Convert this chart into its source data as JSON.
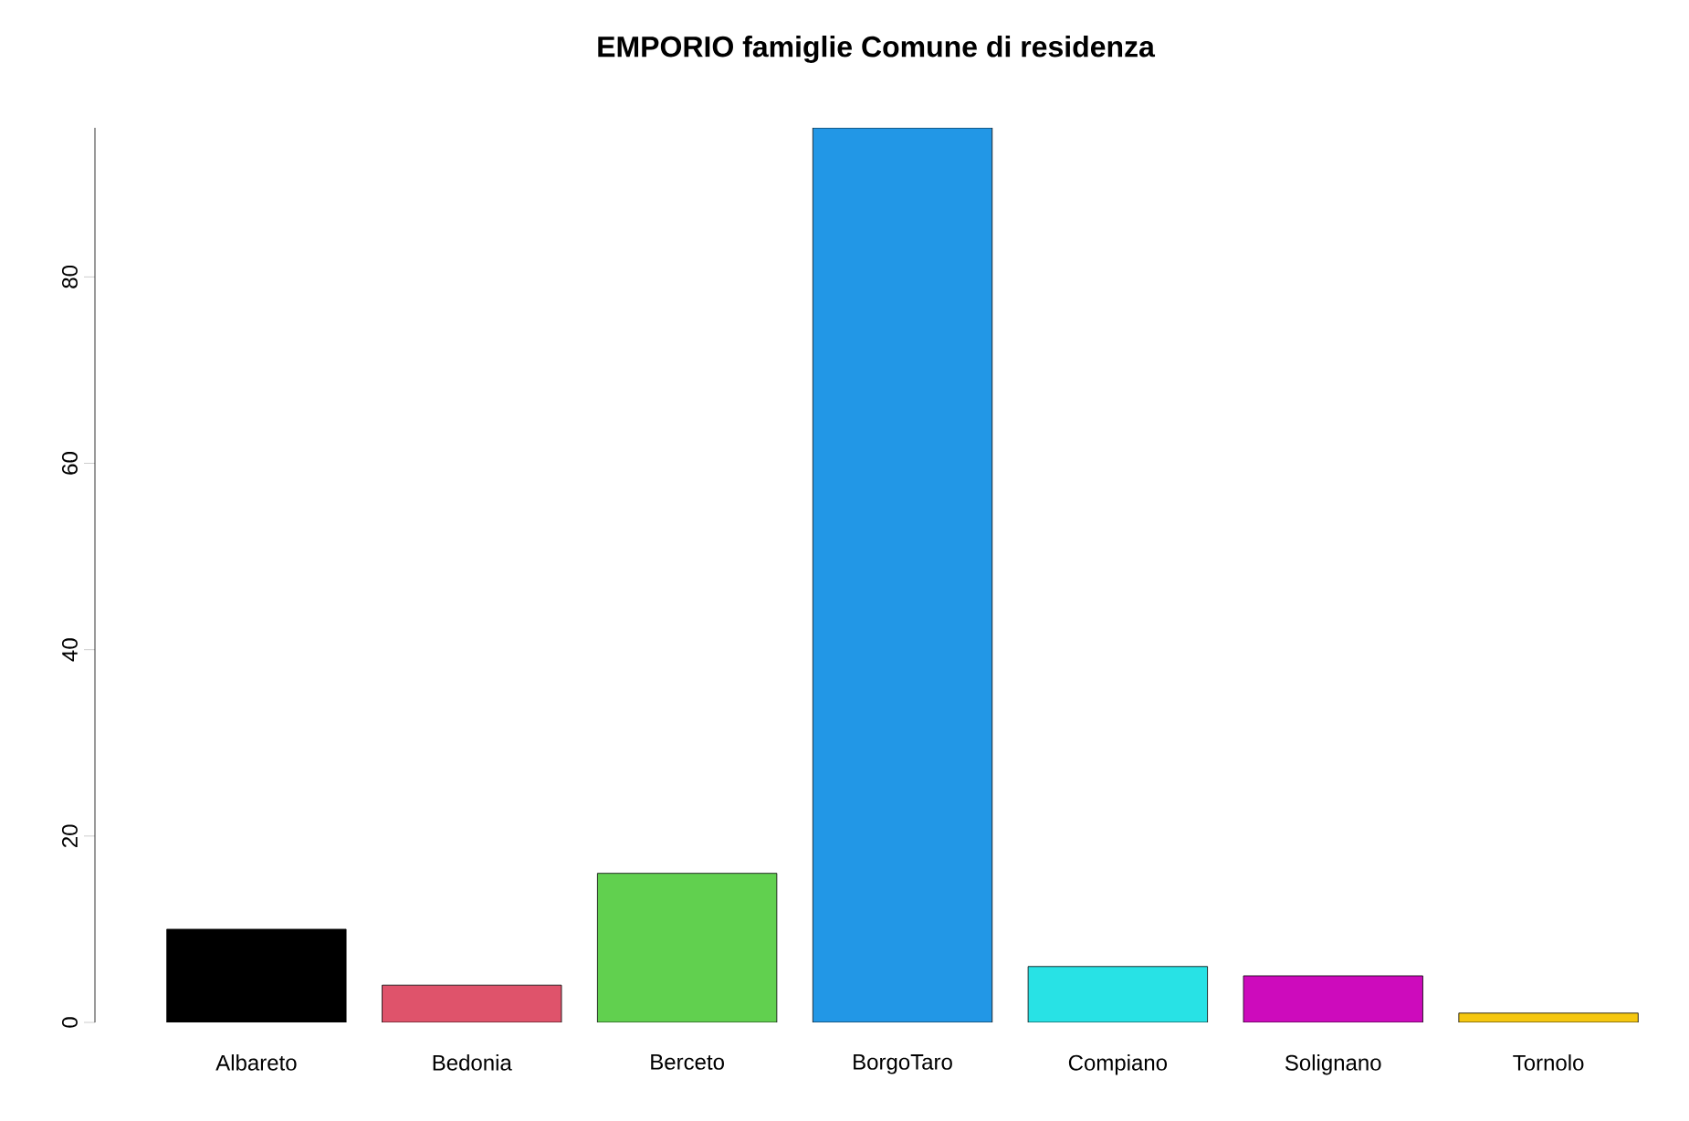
{
  "chart_data": {
    "type": "bar",
    "title": "EMPORIO famiglie Comune di residenza",
    "categories": [
      "Albareto",
      "Bedonia",
      "Berceto",
      "BorgoTaro",
      "Compiano",
      "Solignano",
      "Tornolo"
    ],
    "values": [
      10,
      4,
      16,
      96,
      6,
      5,
      1
    ],
    "colors": [
      "#000000",
      "#df536b",
      "#61d04f",
      "#2297e6",
      "#28e2e5",
      "#cd0bbc",
      "#f5c710"
    ],
    "ylim": [
      0,
      96
    ],
    "yticks": [
      0,
      20,
      40,
      60,
      80
    ],
    "grid": false
  }
}
